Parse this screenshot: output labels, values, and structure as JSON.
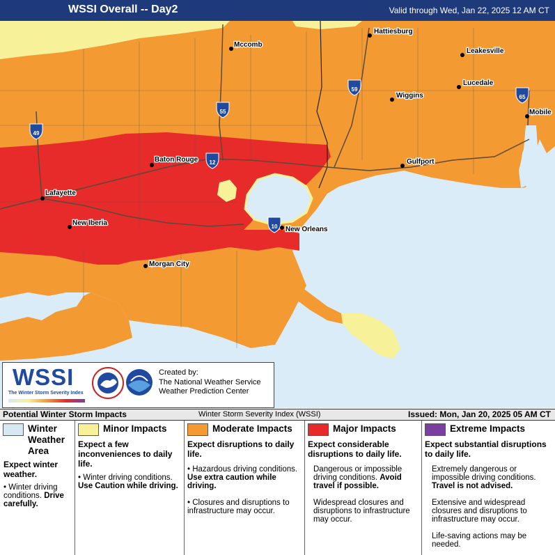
{
  "header": {
    "title": "WSSI Overall -- Day2",
    "valid": "Valid through Wed, Jan 22, 2025 12 AM CT"
  },
  "colors": {
    "winter_weather_area": "#d8e8f3",
    "minor": "#f7f29a",
    "moderate": "#f39a33",
    "major": "#e72b2b",
    "extreme": "#7b3fa0",
    "water": "#d9ecf7"
  },
  "map": {
    "cities": [
      {
        "name": "Hattiesburg"
      },
      {
        "name": "Mccomb"
      },
      {
        "name": "Leakesville"
      },
      {
        "name": "Lucedale"
      },
      {
        "name": "Wiggins"
      },
      {
        "name": "Mobile"
      },
      {
        "name": "Gulfport"
      },
      {
        "name": "Baton Rouge"
      },
      {
        "name": "Lafayette"
      },
      {
        "name": "New Iberia"
      },
      {
        "name": "New Orleans"
      },
      {
        "name": "Morgan City"
      }
    ],
    "shields": {
      "i59": "59",
      "i55": "55",
      "i49": "49",
      "i65": "65",
      "i12": "12",
      "i10": "10"
    }
  },
  "logo": {
    "wssi": "WSSI",
    "subtitle": "The Winter Storm Severity Index",
    "created_by": "Created by:",
    "org1": "The National Weather Service",
    "org2": "Weather Prediction Center"
  },
  "legend_bar": {
    "left": "Potential Winter Storm Impacts",
    "middle": "Winter Storm Severity Index (WSSI)",
    "right": "Issued: Mon, Jan 20, 2025 05 AM CT"
  },
  "legend": {
    "wwa": {
      "title_1": "Winter",
      "title_2": "Weather",
      "title_3": "Area",
      "desc": "Expect winter weather.",
      "b1": "Winter driving conditions.",
      "b1_bold": "Drive carefully."
    },
    "minor": {
      "title": "Minor Impacts",
      "desc": "Expect a few inconveniences to daily life.",
      "b1": "Winter driving conditions.",
      "b1_bold": "Use Caution while driving."
    },
    "moderate": {
      "title": "Moderate Impacts",
      "desc": "Expect disruptions to daily life.",
      "b1": "Hazardous driving conditions.",
      "b1_bold": "Use extra caution while driving.",
      "b2": "Closures and disruptions to infrastructure may occur."
    },
    "major": {
      "title": "Major Impacts",
      "desc": "Expect considerable disruptions to daily life.",
      "b1": "Dangerous or impossible driving conditions.",
      "b1_bold": "Avoid travel if possible.",
      "b2": "Widespread closures and disruptions to infrastructure may occur."
    },
    "extreme": {
      "title": "Extreme Impacts",
      "desc": "Expect substantial disruptions to daily life.",
      "b1": "Extremely dangerous or impossible driving conditions.",
      "b1_bold": "Travel is not advised.",
      "b2": "Extensive and widespread closures and disruptions to infrastructure may occur.",
      "b3": "Life-saving actions may be needed."
    }
  }
}
